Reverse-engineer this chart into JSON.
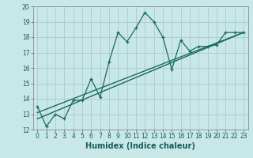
{
  "xlabel": "Humidex (Indice chaleur)",
  "ylabel": "",
  "bg_color": "#c8e8e8",
  "line_color": "#1a6b5a",
  "xlim": [
    -0.5,
    23.5
  ],
  "ylim": [
    12,
    20
  ],
  "xticks": [
    0,
    1,
    2,
    3,
    4,
    5,
    6,
    7,
    8,
    9,
    10,
    11,
    12,
    13,
    14,
    15,
    16,
    17,
    18,
    19,
    20,
    21,
    22,
    23
  ],
  "yticks": [
    12,
    13,
    14,
    15,
    16,
    17,
    18,
    19,
    20
  ],
  "series1_x": [
    0,
    1,
    2,
    3,
    4,
    5,
    6,
    7,
    8,
    9,
    10,
    11,
    12,
    13,
    14,
    15,
    16,
    17,
    18,
    19,
    20,
    21,
    22,
    23
  ],
  "series1_y": [
    13.5,
    12.2,
    13.0,
    12.7,
    13.9,
    13.9,
    15.3,
    14.1,
    16.4,
    18.3,
    17.7,
    18.6,
    19.6,
    19.0,
    18.0,
    15.9,
    17.8,
    17.1,
    17.4,
    17.4,
    17.5,
    18.3,
    18.3,
    18.3
  ],
  "series2_x": [
    0,
    23
  ],
  "series2_y": [
    13.1,
    18.3
  ],
  "series3_x": [
    0,
    23
  ],
  "series3_y": [
    12.7,
    18.3
  ],
  "grid_color": "#b0c8c8",
  "tick_fontsize": 5.5,
  "xlabel_fontsize": 7
}
